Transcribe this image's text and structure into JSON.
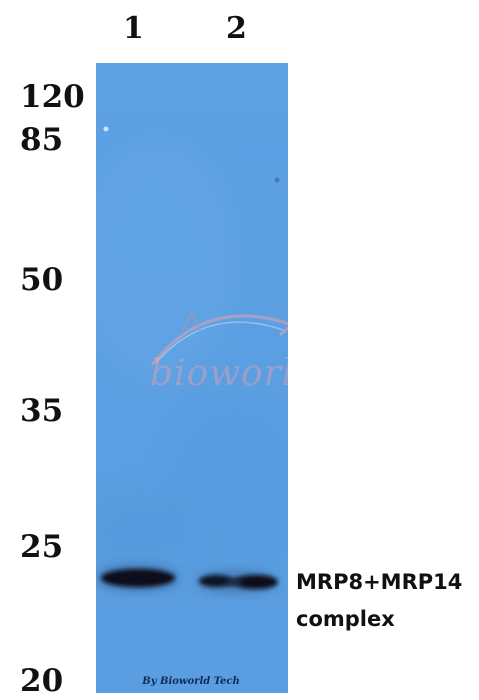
{
  "lanes": [
    {
      "label": "1"
    },
    {
      "label": "2"
    }
  ],
  "markers": [
    {
      "label": "120"
    },
    {
      "label": "85"
    },
    {
      "label": "50"
    },
    {
      "label": "35"
    },
    {
      "label": "25"
    },
    {
      "label": "20"
    }
  ],
  "band_label": {
    "line1": "MRP8+MRP14",
    "line2": "complex"
  },
  "watermark": {
    "text": "bioworld"
  },
  "credit": "By Bioworld Tech",
  "colors": {
    "membrane": "#5b9fe2",
    "band": "#0a0f1c",
    "watermark": "#e8a0a8"
  }
}
